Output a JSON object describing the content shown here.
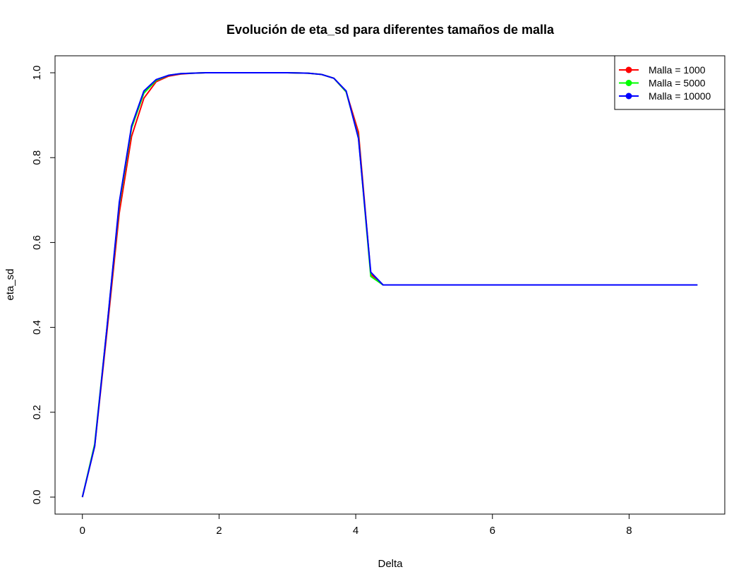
{
  "chart_data": {
    "type": "line",
    "title": "Evolución de eta_sd para diferentes tamaños de malla",
    "xlabel": "Delta",
    "ylabel": "eta_sd",
    "xlim": [
      -0.4,
      9.4
    ],
    "ylim": [
      -0.04,
      1.04
    ],
    "xticks": [
      0,
      2,
      4,
      6,
      8
    ],
    "yticks": [
      0.0,
      0.2,
      0.4,
      0.6,
      0.8,
      1.0
    ],
    "xtick_labels": [
      "0",
      "2",
      "4",
      "6",
      "8"
    ],
    "ytick_labels": [
      "0.0",
      "0.2",
      "0.4",
      "0.6",
      "0.8",
      "1.0"
    ],
    "grid": false,
    "legend_position": "top-right",
    "series": [
      {
        "name": "Malla = 1000",
        "color": "#ff0000",
        "x": [
          0,
          0.18,
          0.36,
          0.54,
          0.72,
          0.9,
          1.08,
          1.26,
          1.44,
          1.62,
          1.8,
          2.0,
          2.5,
          3.0,
          3.3,
          3.5,
          3.68,
          3.86,
          4.04,
          4.22,
          4.4,
          4.6,
          5.0,
          6.0,
          7.0,
          8.0,
          9.0
        ],
        "y": [
          0.0,
          0.12,
          0.39,
          0.67,
          0.85,
          0.94,
          0.979,
          0.992,
          0.997,
          0.999,
          1.0,
          1.0,
          1.0,
          1.0,
          0.999,
          0.996,
          0.987,
          0.955,
          0.86,
          0.525,
          0.5,
          0.5,
          0.5,
          0.5,
          0.5,
          0.5,
          0.5
        ]
      },
      {
        "name": "Malla = 5000",
        "color": "#00ff00",
        "x": [
          0,
          0.18,
          0.36,
          0.54,
          0.72,
          0.9,
          1.08,
          1.26,
          1.44,
          1.62,
          1.8,
          2.0,
          2.5,
          3.0,
          3.3,
          3.5,
          3.68,
          3.86,
          4.04,
          4.22,
          4.4,
          4.6,
          5.0,
          6.0,
          7.0,
          8.0,
          9.0
        ],
        "y": [
          0.0,
          0.125,
          0.4,
          0.69,
          0.87,
          0.952,
          0.982,
          0.994,
          0.998,
          0.999,
          1.0,
          1.0,
          1.0,
          1.0,
          0.999,
          0.996,
          0.987,
          0.955,
          0.848,
          0.52,
          0.5,
          0.5,
          0.5,
          0.5,
          0.5,
          0.5,
          0.5
        ]
      },
      {
        "name": "Malla = 10000",
        "color": "#0000ff",
        "x": [
          0,
          0.18,
          0.36,
          0.54,
          0.72,
          0.9,
          1.08,
          1.26,
          1.44,
          1.62,
          1.8,
          2.0,
          2.5,
          3.0,
          3.3,
          3.5,
          3.68,
          3.86,
          4.04,
          4.22,
          4.4,
          4.6,
          5.0,
          6.0,
          7.0,
          8.0,
          9.0
        ],
        "y": [
          0.0,
          0.12,
          0.4,
          0.695,
          0.875,
          0.957,
          0.984,
          0.994,
          0.998,
          0.999,
          1.0,
          1.0,
          1.0,
          1.0,
          0.999,
          0.996,
          0.987,
          0.957,
          0.845,
          0.53,
          0.5,
          0.5,
          0.5,
          0.5,
          0.5,
          0.5,
          0.5
        ]
      }
    ]
  }
}
